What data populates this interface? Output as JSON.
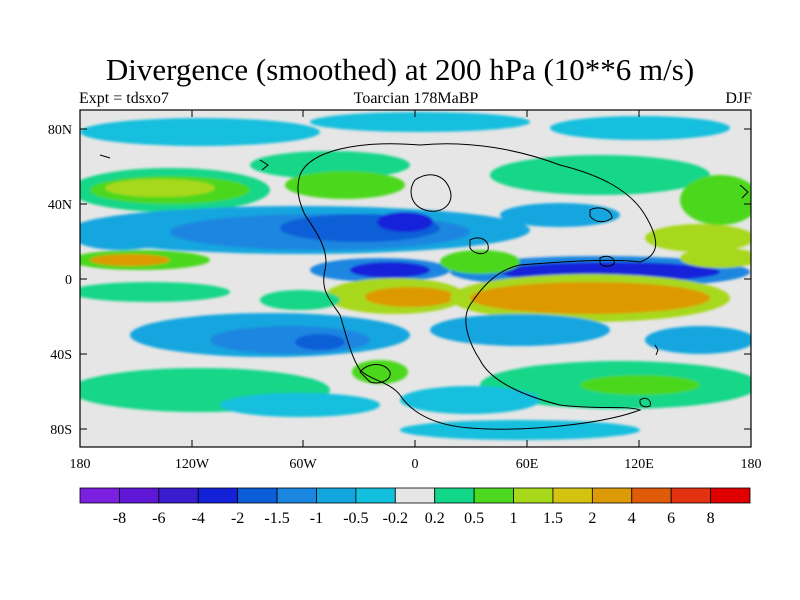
{
  "title": "Divergence (smoothed) at 200 hPa (10**6 m/s)",
  "experiment": "Expt = tdsxo7",
  "period": "Toarcian 178MaBP",
  "season": "DJF",
  "lat_labels": [
    "80N",
    "40N",
    "0",
    "40S",
    "80S"
  ],
  "lon_labels": [
    "180",
    "120W",
    "60W",
    "0",
    "60E",
    "120E",
    "180"
  ],
  "colorbar": {
    "labels": [
      "-8",
      "-6",
      "-4",
      "-2",
      "-1.5",
      "-1",
      "-0.5",
      "-0.2",
      "0.2",
      "0.5",
      "1",
      "1.5",
      "2",
      "4",
      "6",
      "8"
    ],
    "colors": [
      "#7b1fe0",
      "#5e17d6",
      "#3a1ccf",
      "#1322d9",
      "#0b5ed8",
      "#1a86e0",
      "#12a6df",
      "#12bfdd",
      "#e6e6e6",
      "#12d688",
      "#4bd81f",
      "#a7d81a",
      "#d4c411",
      "#dc9a06",
      "#e05b07",
      "#e1330f",
      "#e00000"
    ]
  },
  "colors": {
    "background": "#e6e6e6",
    "coast": "#000000"
  },
  "icons": [
    "coastline-contours"
  ]
}
